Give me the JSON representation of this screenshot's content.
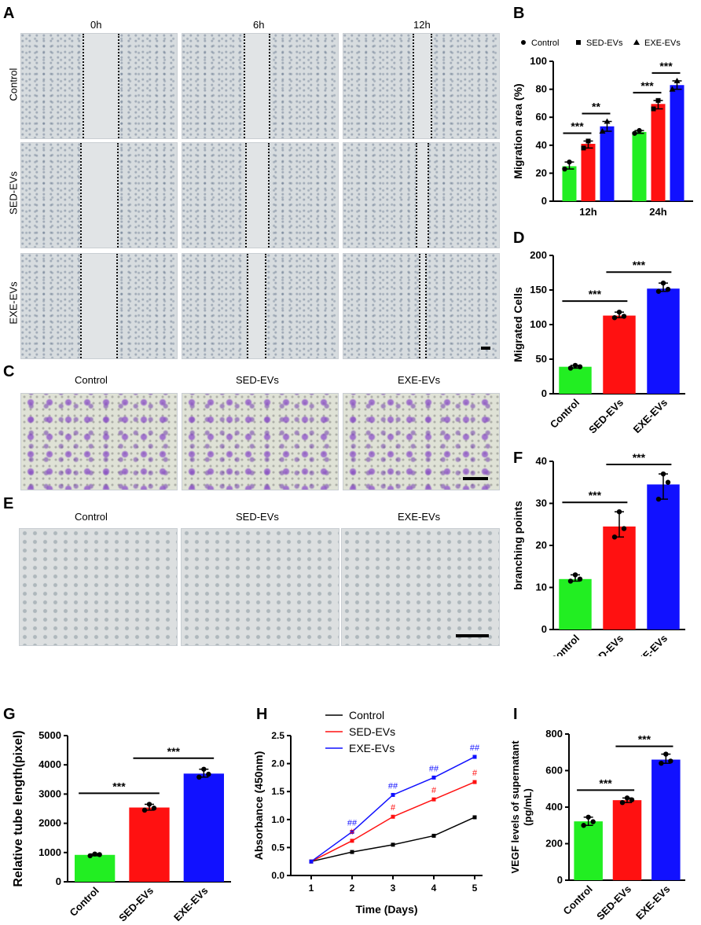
{
  "panel_letters": {
    "A": "A",
    "B": "B",
    "C": "C",
    "D": "D",
    "E": "E",
    "F": "F",
    "G": "G",
    "H": "H",
    "I": "I"
  },
  "panel_a": {
    "columns": [
      "0h",
      "6h",
      "12h"
    ],
    "rows": [
      "Control",
      "SED-EVs",
      "EXE-EVs"
    ]
  },
  "panel_c": {
    "columns": [
      "Control",
      "SED-EVs",
      "EXE-EVs"
    ]
  },
  "panel_e": {
    "columns": [
      "Control",
      "SED-EVs",
      "EXE-EVs"
    ]
  },
  "colors": {
    "control": "#22ee22",
    "sed": "#ff1111",
    "exe": "#1111ff"
  },
  "chart_data": [
    {
      "id": "B",
      "type": "bar",
      "categories": [
        "12h",
        "24h"
      ],
      "series": [
        {
          "name": "Control",
          "values": [
            25,
            49.5
          ],
          "points": [
            [
              23,
              28
            ],
            [
              48.5,
              50.5
            ]
          ],
          "marker": "circle"
        },
        {
          "name": "SED-EVs",
          "values": [
            41,
            69.5
          ],
          "points": [
            [
              38,
              43
            ],
            [
              66,
              72
            ]
          ],
          "marker": "square"
        },
        {
          "name": "EXE-EVs",
          "values": [
            53.5,
            83
          ],
          "points": [
            [
              50,
              57
            ],
            [
              80,
              86
            ]
          ],
          "marker": "triangle"
        }
      ],
      "legend": [
        "Control",
        "SED-EVs",
        "EXE-EVs"
      ],
      "ylabel": "Migration area (%)",
      "ylim": [
        0,
        100
      ],
      "yticks": [
        0,
        20,
        40,
        60,
        80,
        100
      ],
      "significance": [
        {
          "group": 0,
          "from": 0,
          "to": 1,
          "label": "***"
        },
        {
          "group": 0,
          "from": 1,
          "to": 2,
          "label": "**"
        },
        {
          "group": 1,
          "from": 0,
          "to": 1,
          "label": "***"
        },
        {
          "group": 1,
          "from": 1,
          "to": 2,
          "label": "***"
        }
      ]
    },
    {
      "id": "D",
      "type": "bar",
      "categories": [
        "Control",
        "SED-EVs",
        "EXE-EVs"
      ],
      "values": [
        39,
        113,
        152
      ],
      "points": [
        [
          37,
          41,
          39
        ],
        [
          110,
          118,
          112
        ],
        [
          148,
          160,
          151
        ]
      ],
      "ylabel": "Migrated Cells",
      "ylim": [
        0,
        200
      ],
      "yticks": [
        0,
        50,
        100,
        150,
        200
      ],
      "significance": [
        {
          "from": 0,
          "to": 1,
          "label": "***"
        },
        {
          "from": 1,
          "to": 2,
          "label": "***"
        }
      ]
    },
    {
      "id": "F",
      "type": "bar",
      "categories": [
        "Control",
        "SED-EVs",
        "EXE-EVs"
      ],
      "values": [
        12,
        24.5,
        34.5
      ],
      "points": [
        [
          11.5,
          13,
          12
        ],
        [
          22,
          28,
          24
        ],
        [
          31,
          37,
          35
        ]
      ],
      "ylabel": "branching points",
      "ylim": [
        0,
        40
      ],
      "yticks": [
        0,
        10,
        20,
        30,
        40
      ],
      "significance": [
        {
          "from": 0,
          "to": 1,
          "label": "***"
        },
        {
          "from": 1,
          "to": 2,
          "label": "***"
        }
      ]
    },
    {
      "id": "G",
      "type": "bar",
      "categories": [
        "Control",
        "SED-EVs",
        "EXE-EVs"
      ],
      "values": [
        920,
        2540,
        3700
      ],
      "points": [
        [
          890,
          950,
          930
        ],
        [
          2450,
          2650,
          2520
        ],
        [
          3580,
          3850,
          3680
        ]
      ],
      "ylabel": "Relative tube length(pixel)",
      "ylim": [
        0,
        5000
      ],
      "yticks": [
        0,
        1000,
        2000,
        3000,
        4000,
        5000
      ],
      "significance": [
        {
          "from": 0,
          "to": 1,
          "label": "***"
        },
        {
          "from": 1,
          "to": 2,
          "label": "***"
        }
      ]
    },
    {
      "id": "H",
      "type": "line",
      "x": [
        1,
        2,
        3,
        4,
        5
      ],
      "series": [
        {
          "name": "Control",
          "color": "#000000",
          "values": [
            0.25,
            0.42,
            0.55,
            0.71,
            1.04
          ],
          "err": [
            0.01,
            0.03,
            0.03,
            0.03,
            0.03
          ]
        },
        {
          "name": "SED-EVs",
          "color": "#ff1111",
          "values": [
            0.25,
            0.62,
            1.05,
            1.36,
            1.67
          ],
          "err": [
            0.01,
            0.03,
            0.03,
            0.03,
            0.03
          ]
        },
        {
          "name": "EXE-EVs",
          "color": "#1111ff",
          "values": [
            0.25,
            0.78,
            1.44,
            1.75,
            2.12
          ],
          "err": [
            0.01,
            0.03,
            0.03,
            0.03,
            0.03
          ]
        }
      ],
      "xlabel": "Time (Days)",
      "ylabel": "Absorbance (450nm)",
      "ylim": [
        0,
        2.5
      ],
      "yticks": [
        0.0,
        0.5,
        1.0,
        1.5,
        2.0,
        2.5
      ],
      "xticks": [
        1,
        2,
        3,
        4,
        5
      ],
      "annotations": {
        "sed": [
          "",
          "#",
          "#",
          "#",
          "#"
        ],
        "exe": [
          "",
          "##",
          "##",
          "##",
          "##"
        ]
      }
    },
    {
      "id": "I",
      "type": "bar",
      "categories": [
        "Control",
        "SED-EVs",
        "EXE-EVs"
      ],
      "values": [
        322,
        438,
        660
      ],
      "points": [
        [
          300,
          345,
          320
        ],
        [
          425,
          450,
          440
        ],
        [
          640,
          690,
          652
        ]
      ],
      "ylabel": "VEGF levels of supernatant (pg/mL)",
      "ylim": [
        0,
        800
      ],
      "yticks": [
        0,
        200,
        400,
        600,
        800
      ],
      "significance": [
        {
          "from": 0,
          "to": 1,
          "label": "***"
        },
        {
          "from": 1,
          "to": 2,
          "label": "***"
        }
      ]
    }
  ]
}
